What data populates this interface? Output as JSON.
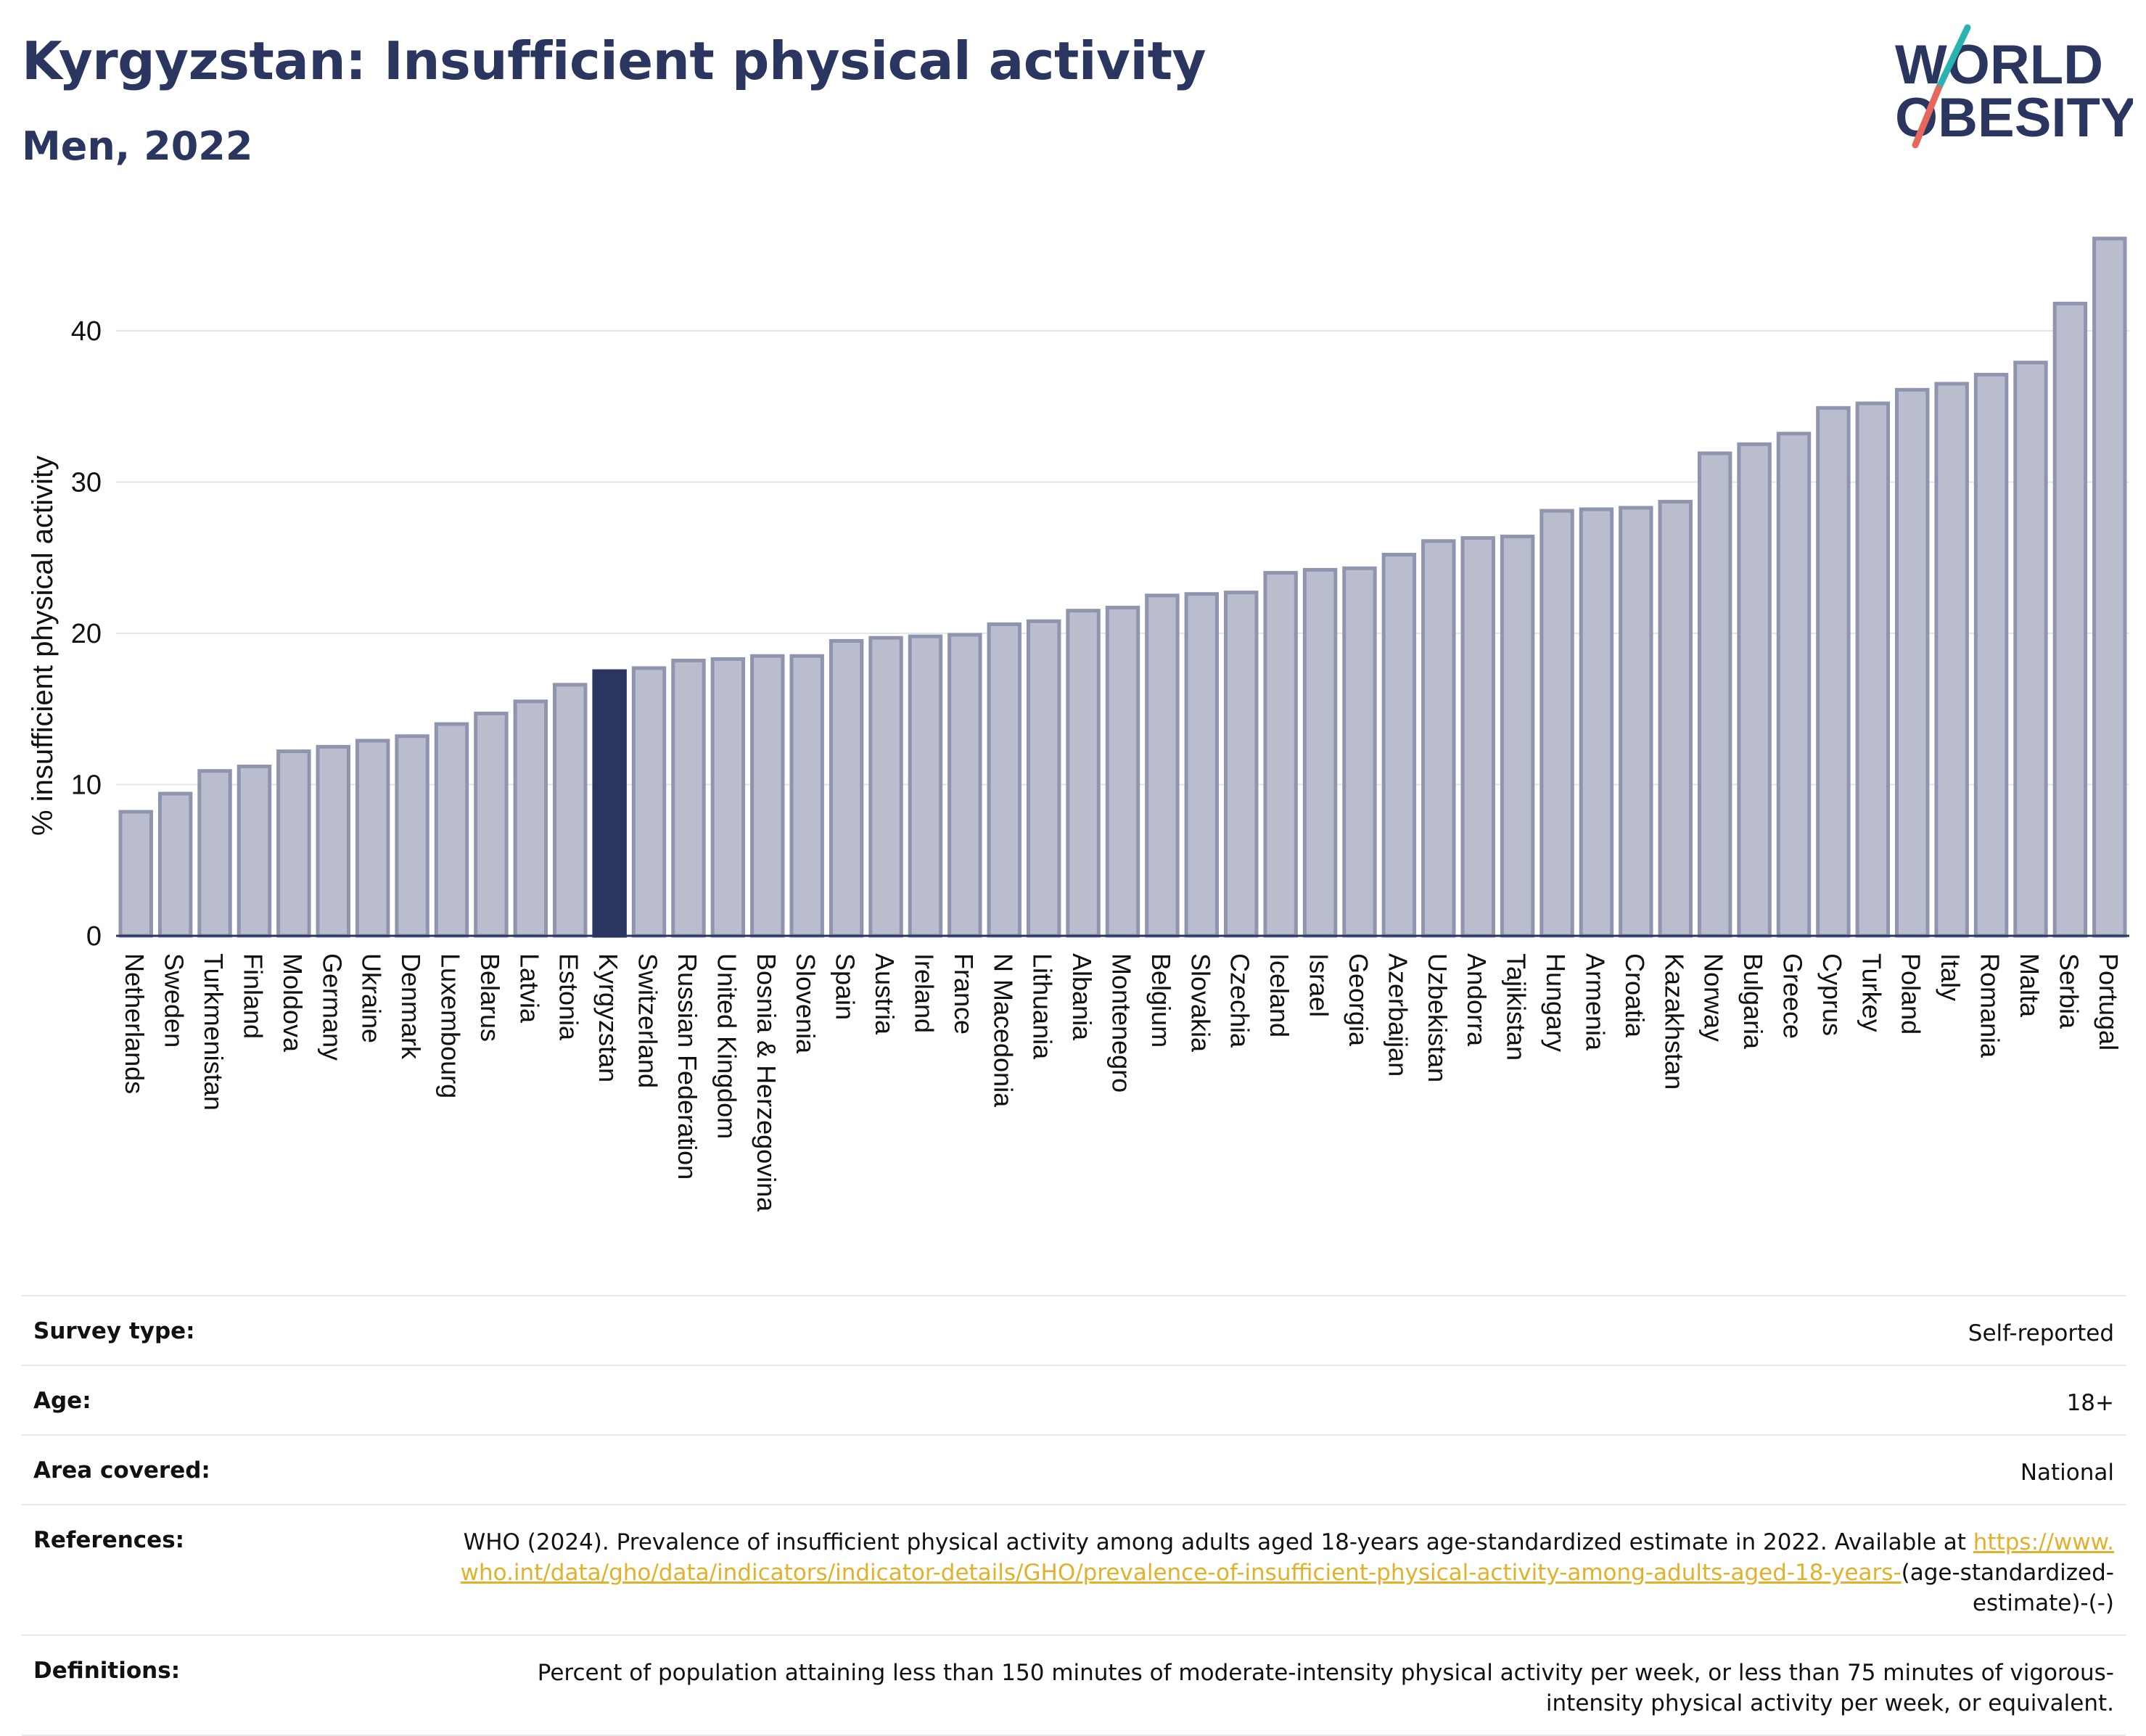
{
  "header": {
    "title": "Kyrgyzstan: Insufficient physical activity",
    "subtitle": "Men, 2022"
  },
  "logo": {
    "line1": "WORLD",
    "line2": "OBESITY",
    "accent_teal": "#2ab3b0",
    "accent_coral": "#e5685a"
  },
  "colors": {
    "bar_fill": "#b9bdcd",
    "bar_stroke": "#8f95ae",
    "highlight": "#2b3660",
    "title": "#2b3660"
  },
  "chart_data": {
    "type": "bar",
    "ylabel": "% insufficient physical activity",
    "xlabel": "",
    "ylim": [
      0,
      47
    ],
    "yticks": [
      0,
      10,
      20,
      30,
      40
    ],
    "grid": true,
    "highlight": "Kyrgyzstan",
    "categories": [
      "Netherlands",
      "Sweden",
      "Turkmenistan",
      "Finland",
      "Moldova",
      "Germany",
      "Ukraine",
      "Denmark",
      "Luxembourg",
      "Belarus",
      "Latvia",
      "Estonia",
      "Kyrgyzstan",
      "Switzerland",
      "Russian Federation",
      "United Kingdom",
      "Bosnia & Herzegovina",
      "Slovenia",
      "Spain",
      "Austria",
      "Ireland",
      "France",
      "N Macedonia",
      "Lithuania",
      "Albania",
      "Montenegro",
      "Belgium",
      "Slovakia",
      "Czechia",
      "Iceland",
      "Israel",
      "Georgia",
      "Azerbaijan",
      "Uzbekistan",
      "Andorra",
      "Tajikistan",
      "Hungary",
      "Armenia",
      "Croatia",
      "Kazakhstan",
      "Norway",
      "Bulgaria",
      "Greece",
      "Cyprus",
      "Turkey",
      "Poland",
      "Italy",
      "Romania",
      "Malta",
      "Serbia",
      "Portugal"
    ],
    "values": [
      8.2,
      9.4,
      10.9,
      11.2,
      12.2,
      12.5,
      12.9,
      13.2,
      14.0,
      14.7,
      15.5,
      16.6,
      17.5,
      17.7,
      18.2,
      18.3,
      18.5,
      18.5,
      19.5,
      19.7,
      19.8,
      19.9,
      20.6,
      20.8,
      21.5,
      21.7,
      22.5,
      22.6,
      22.7,
      24.0,
      24.2,
      24.3,
      25.2,
      26.1,
      26.3,
      26.4,
      28.1,
      28.2,
      28.3,
      28.7,
      31.9,
      32.5,
      33.2,
      34.9,
      35.2,
      36.1,
      36.5,
      37.1,
      37.9,
      41.8,
      46.1
    ]
  },
  "info": {
    "survey_label": "Survey type:",
    "survey_value": "Self-reported",
    "age_label": "Age:",
    "age_value": "18+",
    "area_label": "Area covered:",
    "area_value": "National",
    "references_label": "References:",
    "references_text": "WHO (2024). Prevalence of insufficient physical activity among adults aged 18-years age-standardized estimate in 2022. Available at",
    "references_link": "https://www.who.int/data/gho/data/indicators/indicator-details/GHO/prevalence-of-insufficient-physical-activity-among-adults-aged-18-years-",
    "references_tail": "(age-standardized-estimate)-(-)",
    "definitions_label": "Definitions:",
    "definitions_value": "Percent of population attaining less than 150 minutes of moderate-intensity physical activity per week, or less than 75 minutes of vigorous-intensity physical activity per week, or equivalent."
  }
}
